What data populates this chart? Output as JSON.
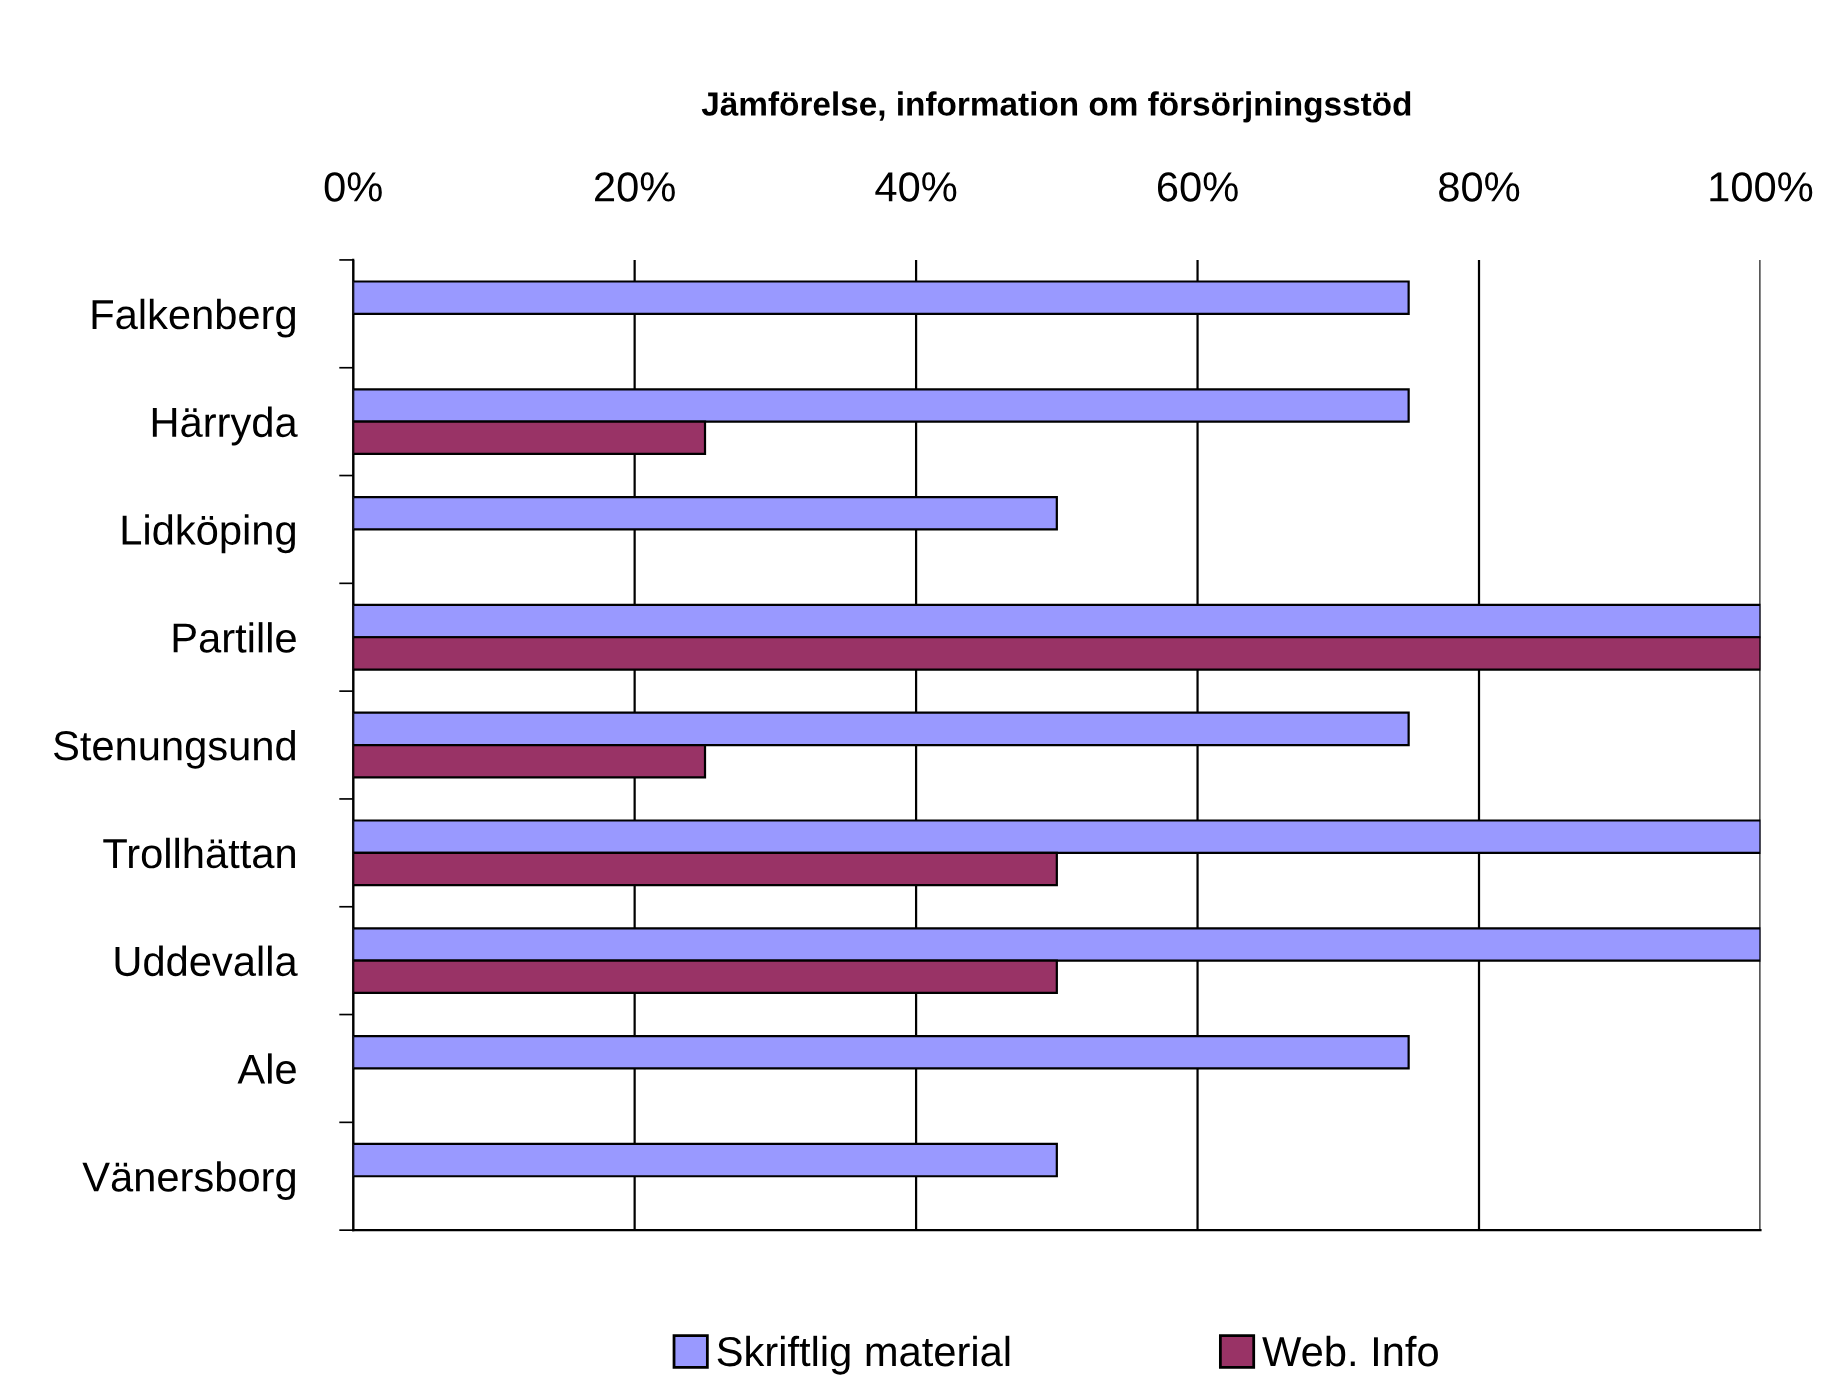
{
  "chart_data": {
    "type": "bar",
    "orientation": "horizontal",
    "title": "Jämförelse, information om försörjningsstöd",
    "categories": [
      "Falkenberg",
      "Härryda",
      "Lidköping",
      "Partille",
      "Stenungsund",
      "Trollhättan",
      "Uddevalla",
      "Ale",
      "Vänersborg"
    ],
    "series": [
      {
        "name": "Skriftlig material",
        "color": "#9999ff",
        "values": [
          75,
          75,
          50,
          100,
          75,
          100,
          100,
          75,
          50
        ]
      },
      {
        "name": "Web. Info",
        "color": "#993366",
        "values": [
          null,
          25,
          null,
          100,
          25,
          50,
          50,
          null,
          null
        ]
      }
    ],
    "xlim": [
      0,
      100
    ],
    "xticks": [
      {
        "value": 0,
        "label": "0%"
      },
      {
        "value": 20,
        "label": "20%"
      },
      {
        "value": 40,
        "label": "40%"
      },
      {
        "value": 60,
        "label": "60%"
      },
      {
        "value": 80,
        "label": "80%"
      },
      {
        "value": 100,
        "label": "100%"
      }
    ],
    "grid": "x",
    "legend": "bottom"
  }
}
